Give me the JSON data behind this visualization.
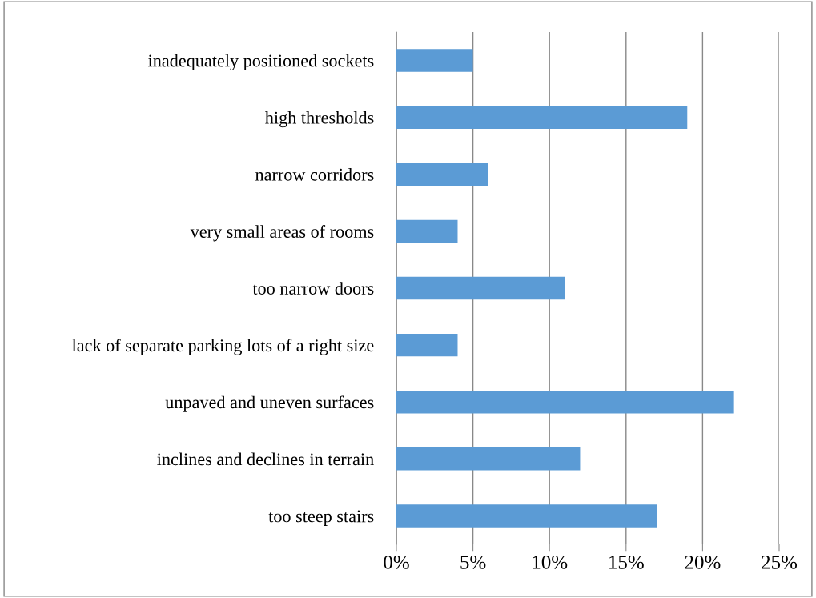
{
  "chart_data": {
    "type": "bar",
    "orientation": "horizontal",
    "categories": [
      "inadequately positioned sockets",
      "high thresholds",
      "narrow corridors",
      "very small areas of rooms",
      "too narrow doors",
      "lack of separate parking lots of a right size",
      "unpaved and uneven surfaces",
      "inclines and declines in terrain",
      "too steep stairs"
    ],
    "values": [
      5,
      19,
      6,
      4,
      11,
      4,
      22,
      12,
      17
    ],
    "color": "#5b9bd5",
    "xlim": [
      0,
      25
    ],
    "xticks": [
      {
        "value": 0,
        "label": "0%"
      },
      {
        "value": 5,
        "label": "5%"
      },
      {
        "value": 10,
        "label": "10%"
      },
      {
        "value": 15,
        "label": "15%"
      },
      {
        "value": 20,
        "label": "20%"
      },
      {
        "value": 25,
        "label": "25%"
      }
    ],
    "grid": "x",
    "legend": false
  }
}
